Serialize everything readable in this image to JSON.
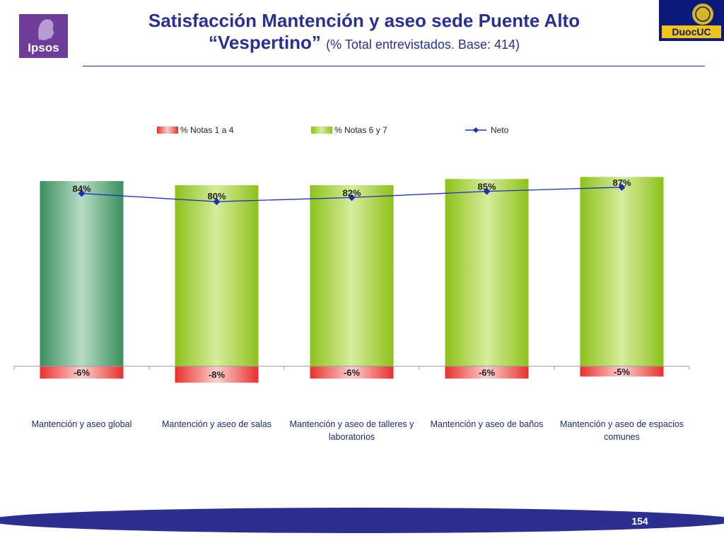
{
  "header": {
    "title_line1": "Satisfacción Mantención y aseo sede Puente Alto",
    "title_line2": "“Vespertino”",
    "title_sub": "(% Total entrevistados. Base: 414)"
  },
  "logos": {
    "ipsos": "Ipsos",
    "duoc": "DuocUC"
  },
  "page_number": "154",
  "colors": {
    "title": "#2b2f8f",
    "negative": "#e8302c",
    "positive": "#9acd1f",
    "global_bar": "#3a8f5c",
    "net_line": "#1a2fc0",
    "footer": "#2b2f8f"
  },
  "chart_data": {
    "type": "bar",
    "categories": [
      "Mantención y aseo global",
      "Mantención y aseo de salas",
      "Mantención y aseo de talleres y laboratorios",
      "Mantención y aseo de baños",
      "Mantención y aseo de espacios comunes"
    ],
    "series": [
      {
        "name": "% Notas 1 a 4",
        "values": [
          -6,
          -8,
          -6,
          -6,
          -5
        ],
        "labels": [
          "-6%",
          "-8%",
          "-6%",
          "-6%",
          "-5%"
        ]
      },
      {
        "name": "% Notas 6 y 7",
        "values": [
          90,
          88,
          88,
          91,
          92
        ]
      },
      {
        "name": "Neto",
        "values": [
          84,
          80,
          82,
          85,
          87
        ],
        "labels": [
          "84%",
          "80%",
          "82%",
          "85%",
          "87%"
        ]
      }
    ],
    "legend_position": "top",
    "grid": false
  }
}
